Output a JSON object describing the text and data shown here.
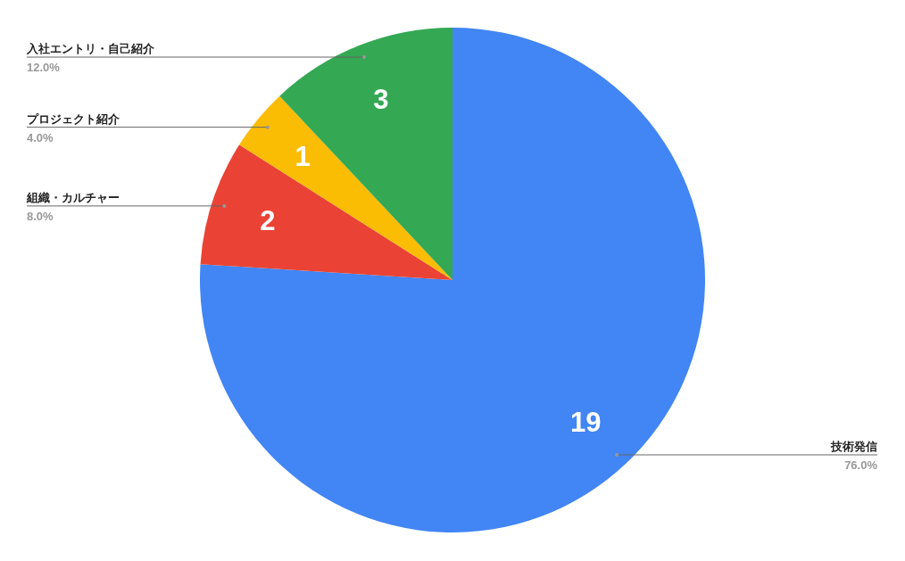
{
  "chart_data": {
    "type": "pie",
    "categories": [
      "技術発信",
      "組織・カルチャー",
      "プロジェクト紹介",
      "入社エントリ・自己紹介"
    ],
    "values": [
      19,
      2,
      1,
      3
    ],
    "colors": [
      "#4285f4",
      "#ea4335",
      "#fbbc04",
      "#34a853"
    ],
    "data_labels": true,
    "annotations": [
      "76.0%",
      "8.0%",
      "4.0%",
      "12.0%"
    ]
  }
}
